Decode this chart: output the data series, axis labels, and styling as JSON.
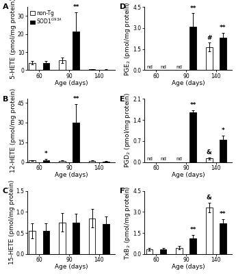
{
  "panels": {
    "A": {
      "ylabel": "5-HETE (pmol/mg protein)",
      "xlabel": "Age (days)",
      "ylim": [
        0,
        35
      ],
      "yticks": [
        0,
        10,
        20,
        30
      ],
      "values": [
        4.0,
        4.0,
        5.5,
        21.5,
        0.4,
        0.2
      ],
      "errors": [
        1.0,
        0.9,
        1.5,
        10.5,
        0.2,
        0.15
      ],
      "colors": [
        "white",
        "black",
        "white",
        "black",
        "white",
        "black"
      ],
      "sig": {
        "3": "**"
      }
    },
    "B": {
      "ylabel": "12-HETE (pmol/mg protein)",
      "xlabel": "Age (days)",
      "ylim": [
        0,
        48
      ],
      "yticks": [
        0,
        15,
        30,
        45
      ],
      "values": [
        1.2,
        1.5,
        1.0,
        30.0,
        1.0,
        0.4
      ],
      "errors": [
        0.4,
        0.9,
        0.4,
        14.0,
        0.4,
        0.2
      ],
      "colors": [
        "white",
        "black",
        "white",
        "black",
        "white",
        "black"
      ],
      "sig": {
        "1": "*",
        "3": "**"
      }
    },
    "C": {
      "ylabel": "15-HETE (pmol/mg protein)",
      "xlabel": "Age (days)",
      "ylim": [
        0,
        1.5
      ],
      "yticks": [
        0.0,
        0.5,
        1.0,
        1.5
      ],
      "values": [
        0.55,
        0.55,
        0.75,
        0.75,
        0.85,
        0.72
      ],
      "errors": [
        0.18,
        0.18,
        0.22,
        0.2,
        0.22,
        0.17
      ],
      "colors": [
        "white",
        "black",
        "white",
        "black",
        "white",
        "black"
      ],
      "sig": {}
    },
    "D": {
      "ylabel": "PGE$_2$ (pmol/mg protein)",
      "xlabel": "Age (days)",
      "ylim": [
        0.0,
        4.5
      ],
      "yticks": [
        0.0,
        1.5,
        3.0,
        4.5
      ],
      "values": [
        0.0,
        0.0,
        0.0,
        3.1,
        1.65,
        2.3
      ],
      "errors": [
        0.0,
        0.0,
        0.0,
        0.95,
        0.3,
        0.35
      ],
      "colors": [
        "white",
        "black",
        "white",
        "black",
        "white",
        "black"
      ],
      "nd_indices": [
        0,
        1,
        2
      ],
      "sig": {
        "3": "**",
        "4": "#",
        "5": "**"
      }
    },
    "E": {
      "ylabel": "PGD$_2$ (pmol/mg protein)",
      "xlabel": "Age (days)",
      "ylim": [
        0.0,
        2.1
      ],
      "yticks": [
        0.0,
        0.7,
        1.4,
        2.1
      ],
      "values": [
        0.0,
        0.0,
        0.0,
        1.65,
        0.12,
        0.75
      ],
      "errors": [
        0.0,
        0.0,
        0.0,
        0.08,
        0.04,
        0.13
      ],
      "colors": [
        "white",
        "black",
        "white",
        "black",
        "white",
        "black"
      ],
      "nd_indices": [
        0,
        1,
        2
      ],
      "sig": {
        "3": "**",
        "4": "&",
        "5": "*"
      }
    },
    "F": {
      "ylabel": "TxB$_2$ (pmol/mg protein)",
      "xlabel": "Age (days)",
      "ylim": [
        0.0,
        4.5
      ],
      "yticks": [
        0.0,
        1.5,
        3.0,
        4.5
      ],
      "values": [
        0.35,
        0.35,
        0.45,
        1.1,
        3.3,
        2.2
      ],
      "errors": [
        0.1,
        0.1,
        0.12,
        0.28,
        0.35,
        0.28
      ],
      "colors": [
        "white",
        "black",
        "white",
        "black",
        "white",
        "black"
      ],
      "sig": {
        "3": "**",
        "4": "&",
        "5": "**"
      }
    }
  },
  "tick_fontsize": 5.5,
  "label_fontsize": 6.5,
  "panel_label_fontsize": 8,
  "sig_fontsize": 6.5,
  "legend_fontsize": 5.5,
  "figure_width": 3.45,
  "figure_height": 4.0,
  "dpi": 100
}
